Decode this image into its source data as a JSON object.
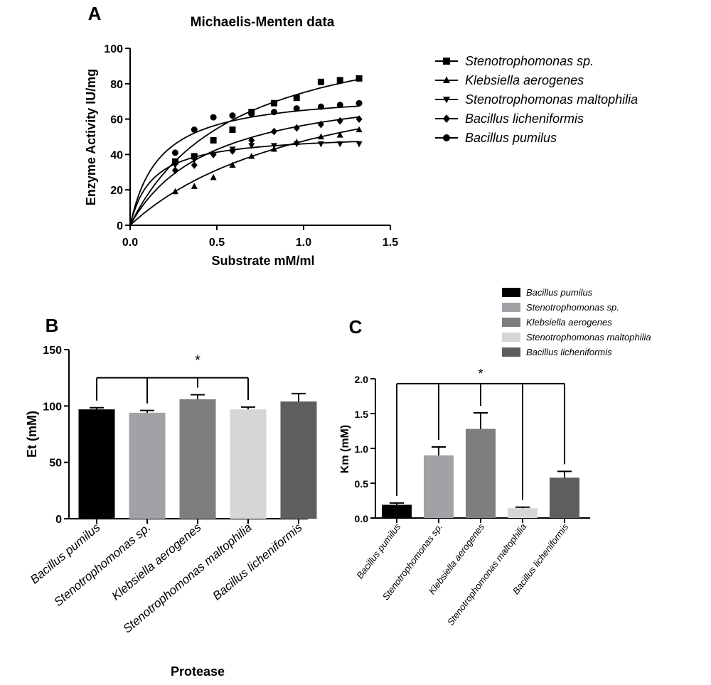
{
  "chart_data": [
    {
      "panel_label": "A",
      "type": "scatter",
      "title": "Michaelis-Menten data",
      "xlabel": "Substrate mM/ml",
      "ylabel": "Enzyme Activity IU/mg",
      "xlim": [
        0,
        1.5
      ],
      "ylim": [
        0,
        100
      ],
      "x_ticks": [
        "0.0",
        "0.5",
        "1.0",
        "1.5"
      ],
      "y_ticks": [
        "0",
        "20",
        "40",
        "60",
        "80",
        "100"
      ],
      "legend_position": "right",
      "series": [
        {
          "name": "Stenotrophomonas sp.",
          "marker": "square",
          "vmax": 120,
          "km": 0.6,
          "x": [
            0.26,
            0.37,
            0.48,
            0.59,
            0.7,
            0.83,
            0.96,
            1.1,
            1.21,
            1.32
          ],
          "y": [
            36,
            39,
            48,
            54,
            64,
            69,
            72,
            81,
            82,
            83
          ]
        },
        {
          "name": "Klebsiella aerogenes",
          "marker": "triangle-up",
          "vmax": 100,
          "km": 1.1,
          "x": [
            0.26,
            0.37,
            0.48,
            0.59,
            0.7,
            0.83,
            0.96,
            1.1,
            1.21,
            1.32
          ],
          "y": [
            19,
            22,
            27,
            34,
            39,
            43,
            47,
            50,
            51,
            54
          ]
        },
        {
          "name": "Stenotrophomonas maltophilia",
          "marker": "triangle-down",
          "vmax": 52,
          "km": 0.13,
          "x": [
            0.26,
            0.37,
            0.48,
            0.59,
            0.7,
            0.83,
            0.96,
            1.1,
            1.21,
            1.32
          ],
          "y": [
            34,
            37,
            40,
            43,
            45,
            45,
            46,
            46,
            46,
            46
          ]
        },
        {
          "name": "Bacillus licheniformis",
          "marker": "diamond",
          "vmax": 83,
          "km": 0.47,
          "x": [
            0.26,
            0.37,
            0.48,
            0.59,
            0.7,
            0.83,
            0.96,
            1.1,
            1.21,
            1.32
          ],
          "y": [
            31,
            34,
            40,
            42,
            48,
            53,
            55,
            57,
            59,
            60
          ]
        },
        {
          "name": "Bacillus pumilus",
          "marker": "circle",
          "vmax": 76,
          "km": 0.17,
          "x": [
            0.26,
            0.37,
            0.48,
            0.59,
            0.7,
            0.83,
            0.96,
            1.1,
            1.21,
            1.32
          ],
          "y": [
            41,
            54,
            61,
            62,
            63,
            64,
            66,
            67,
            68,
            69
          ]
        }
      ]
    },
    {
      "panel_label": "B",
      "type": "bar",
      "xlabel": "Protease",
      "ylabel": "Et (mM)",
      "ylim": [
        0,
        150
      ],
      "y_ticks": [
        "0",
        "50",
        "100",
        "150"
      ],
      "categories": [
        "Bacillus pumilus",
        "Stenotrophomonas sp.",
        "Klebsiella aerogenes",
        "Stenotrophomonas maltophilia",
        "Bacillus licheniformis"
      ],
      "values": [
        97,
        94,
        106,
        97,
        104
      ],
      "errors": [
        1.5,
        2,
        4,
        2,
        7
      ],
      "colors": [
        "#000000",
        "#a2a2a6",
        "#7e7e7e",
        "#d6d6d6",
        "#5e5e5e"
      ],
      "significance": {
        "label": "*",
        "baseline": 125
      }
    },
    {
      "panel_label": "C",
      "type": "bar",
      "ylabel": "Km (mM)",
      "ylim": [
        0,
        2.0
      ],
      "y_ticks": [
        "0.0",
        "0.5",
        "1.0",
        "1.5",
        "2.0"
      ],
      "categories": [
        "Bacillus pumilus",
        "Stenotrophomonas sp.",
        "Klebsiella aerogenes",
        "Stenotrophomonas maltophilia",
        "Bacillus licheniformis"
      ],
      "values": [
        0.19,
        0.9,
        1.28,
        0.14,
        0.58
      ],
      "errors": [
        0.025,
        0.12,
        0.23,
        0.015,
        0.09
      ],
      "colors": [
        "#000000",
        "#a2a2a6",
        "#7e7e7e",
        "#d6d6d6",
        "#5e5e5e"
      ],
      "legend_position": "top-right",
      "significance": {
        "label": "*",
        "baseline": 1.93
      }
    }
  ]
}
